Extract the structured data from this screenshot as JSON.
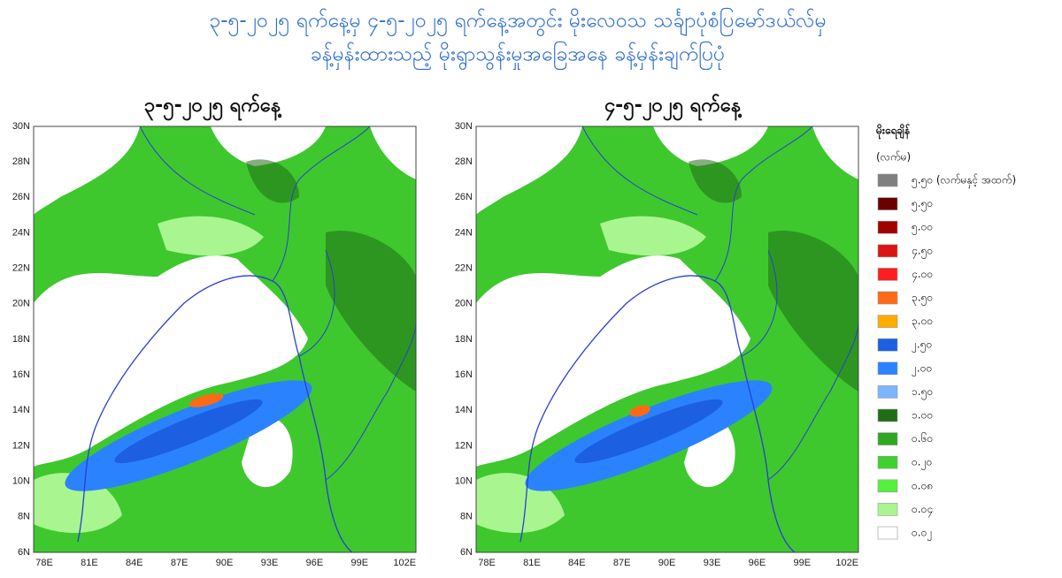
{
  "title_lines": [
    "၃-၅-၂၀၂၅ ရက်နေ့မှ ၄-၅-၂၀၂၅ ရက်နေ့အတွင်း မိုးလေဝသ သင်္ချာပုံစံပြမော်ဒယ်လ်မှ",
    "ခန့်မှန်းထားသည့် မိုးရွာသွန်းမှုအခြေအနေ ခန့်မှန်းချက်ပြပုံ"
  ],
  "panels": [
    {
      "title": "၃-၅-၂၀၂၅ ရက်နေ့"
    },
    {
      "title": "၄-၅-၂၀၂၅ ရက်နေ့"
    }
  ],
  "lat_labels": [
    "30N",
    "28N",
    "26N",
    "24N",
    "22N",
    "20N",
    "18N",
    "16N",
    "14N",
    "12N",
    "10N",
    "8N",
    "6N"
  ],
  "lon_labels": [
    "78E",
    "81E",
    "84E",
    "87E",
    "90E",
    "93E",
    "96E",
    "99E",
    "102E"
  ],
  "legend": {
    "title": "မိုးရေချိန်",
    "unit": "(လက်မ)",
    "items": [
      {
        "label": "၅.၅၀ (လက်မနှင့် အထက်)",
        "color": "#7f7f7f"
      },
      {
        "label": "၅.၅၀",
        "color": "#6b0000"
      },
      {
        "label": "၅.၀၀",
        "color": "#a30000"
      },
      {
        "label": "၄.၅၀",
        "color": "#dc1414"
      },
      {
        "label": "၄.၀၀",
        "color": "#ff1e1e"
      },
      {
        "label": "၃.၅၀",
        "color": "#ff6a14"
      },
      {
        "label": "၃.၀၀",
        "color": "#ffad00"
      },
      {
        "label": "၂.၅၀",
        "color": "#1c5fe0"
      },
      {
        "label": "၂.၀၀",
        "color": "#2b82ff"
      },
      {
        "label": "၁.၅၀",
        "color": "#7db5ff"
      },
      {
        "label": "၁.၀၀",
        "color": "#1f6e16"
      },
      {
        "label": "၀.၆၀",
        "color": "#2ea820"
      },
      {
        "label": "၀.၂၀",
        "color": "#3ed22c"
      },
      {
        "label": "၀.၀၈",
        "color": "#55f03e"
      },
      {
        "label": "၀.၀၄",
        "color": "#a9f590"
      },
      {
        "label": "၀.၀၂",
        "color": "#ffffff"
      }
    ]
  }
}
